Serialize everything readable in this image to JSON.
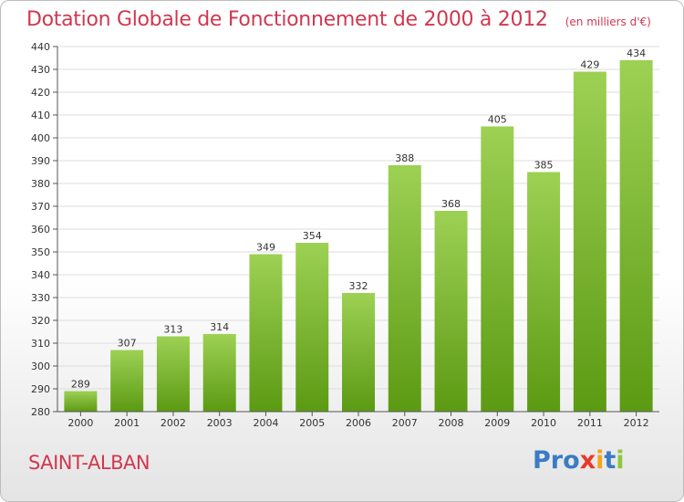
{
  "header": {
    "title": "Dotation Globale de Fonctionnement de 2000 à 2012",
    "unit_note": "(en milliers d'€)"
  },
  "footer": {
    "place_name": "SAINT-ALBAN",
    "brand": {
      "text": "Proxiti"
    }
  },
  "colors": {
    "title": "#d0384f",
    "bar_light": "#9dd154",
    "bar_dark": "#5c9a13",
    "grid": "#dcdcdc",
    "brand_letters": [
      "#3a7cc4",
      "#3a7cc4",
      "#3a7cc4",
      "#e8392b",
      "#f2a51c",
      "#3a7cc4",
      "#8dc63f"
    ]
  },
  "chart_data": {
    "type": "bar",
    "categories": [
      "2000",
      "2001",
      "2002",
      "2003",
      "2004",
      "2005",
      "2006",
      "2007",
      "2008",
      "2009",
      "2010",
      "2011",
      "2012"
    ],
    "values": [
      289,
      307,
      313,
      314,
      349,
      354,
      332,
      388,
      368,
      405,
      385,
      429,
      434
    ],
    "ylim": [
      280,
      440
    ],
    "yticks": [
      280,
      290,
      300,
      310,
      320,
      330,
      340,
      350,
      360,
      370,
      380,
      390,
      400,
      410,
      420,
      430,
      440
    ],
    "grid": true,
    "legend": "none"
  }
}
